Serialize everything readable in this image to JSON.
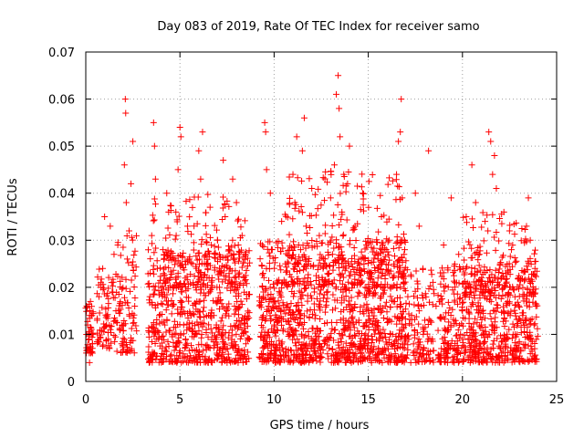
{
  "chart_data": {
    "type": "scatter",
    "title": "Day 083 of 2019, Rate Of TEC Index for receiver samo",
    "xlabel": "GPS time / hours",
    "ylabel": "ROTI / TECUs",
    "xlim": [
      0,
      25
    ],
    "ylim": [
      0,
      0.07
    ],
    "x_ticks": [
      0,
      5,
      10,
      15,
      20,
      25
    ],
    "x_tick_labels": [
      "0",
      "5",
      "10",
      "15",
      "20",
      "25"
    ],
    "y_ticks": [
      0,
      0.01,
      0.02,
      0.03,
      0.04,
      0.05,
      0.06,
      0.07
    ],
    "y_tick_labels": [
      "0",
      "0.01",
      "0.02",
      "0.03",
      "0.04",
      "0.05",
      "0.06",
      "0.07"
    ],
    "grid": true,
    "marker": "+",
    "marker_color": "#ff0000",
    "series": [
      {
        "name": "ROTI",
        "points": [
          [
            0.05,
            0.016
          ],
          [
            0.1,
            0.012
          ],
          [
            0.15,
            0.009
          ],
          [
            0.2,
            0.014
          ],
          [
            0.25,
            0.017
          ],
          [
            0.3,
            0.011
          ],
          [
            0.35,
            0.008
          ],
          [
            0.2,
            0.004
          ],
          [
            0.6,
            0.013
          ],
          [
            0.7,
            0.018
          ],
          [
            0.8,
            0.021
          ],
          [
            0.9,
            0.024
          ],
          [
            1.0,
            0.035
          ],
          [
            1.1,
            0.012
          ],
          [
            1.2,
            0.009
          ],
          [
            1.3,
            0.033
          ],
          [
            1.4,
            0.019
          ],
          [
            1.5,
            0.027
          ],
          [
            1.6,
            0.015
          ],
          [
            1.7,
            0.029
          ],
          [
            1.8,
            0.011
          ],
          [
            1.9,
            0.008
          ],
          [
            2.0,
            0.012
          ],
          [
            2.05,
            0.046
          ],
          [
            2.1,
            0.06
          ],
          [
            2.12,
            0.057
          ],
          [
            2.15,
            0.038
          ],
          [
            2.2,
            0.026
          ],
          [
            2.3,
            0.032
          ],
          [
            2.4,
            0.042
          ],
          [
            2.5,
            0.051
          ],
          [
            2.6,
            0.016
          ],
          [
            3.4,
            0.018
          ],
          [
            3.5,
            0.031
          ],
          [
            3.6,
            0.055
          ],
          [
            3.65,
            0.05
          ],
          [
            3.7,
            0.043
          ],
          [
            3.8,
            0.024
          ],
          [
            3.9,
            0.014
          ],
          [
            4.0,
            0.02
          ],
          [
            4.1,
            0.028
          ],
          [
            4.2,
            0.012
          ],
          [
            4.3,
            0.04
          ],
          [
            4.4,
            0.036
          ],
          [
            4.5,
            0.022
          ],
          [
            4.6,
            0.016
          ],
          [
            4.7,
            0.01
          ],
          [
            4.8,
            0.031
          ],
          [
            4.9,
            0.045
          ],
          [
            5.0,
            0.054
          ],
          [
            5.05,
            0.052
          ],
          [
            5.1,
            0.019
          ],
          [
            5.2,
            0.012
          ],
          [
            5.3,
            0.009
          ],
          [
            5.4,
            0.033
          ],
          [
            5.5,
            0.026
          ],
          [
            5.6,
            0.014
          ],
          [
            5.7,
            0.021
          ],
          [
            5.8,
            0.01
          ],
          [
            5.9,
            0.017
          ],
          [
            6.0,
            0.049
          ],
          [
            6.1,
            0.043
          ],
          [
            6.2,
            0.053
          ],
          [
            6.3,
            0.025
          ],
          [
            6.4,
            0.011
          ],
          [
            6.6,
            0.037
          ],
          [
            6.7,
            0.022
          ],
          [
            6.8,
            0.014
          ],
          [
            6.9,
            0.009
          ],
          [
            7.0,
            0.03
          ],
          [
            7.1,
            0.02
          ],
          [
            7.3,
            0.047
          ],
          [
            7.4,
            0.035
          ],
          [
            7.6,
            0.028
          ],
          [
            7.8,
            0.043
          ],
          [
            7.9,
            0.016
          ],
          [
            8.0,
            0.038
          ],
          [
            8.1,
            0.029
          ],
          [
            8.2,
            0.012
          ],
          [
            8.3,
            0.031
          ],
          [
            8.5,
            0.008
          ],
          [
            9.5,
            0.055
          ],
          [
            9.55,
            0.053
          ],
          [
            9.6,
            0.045
          ],
          [
            9.7,
            0.016
          ],
          [
            9.8,
            0.04
          ],
          [
            9.9,
            0.028
          ],
          [
            10.0,
            0.012
          ],
          [
            10.2,
            0.021
          ],
          [
            10.4,
            0.034
          ],
          [
            10.6,
            0.025
          ],
          [
            10.8,
            0.01
          ],
          [
            11.0,
            0.044
          ],
          [
            11.1,
            0.038
          ],
          [
            11.2,
            0.052
          ],
          [
            11.3,
            0.029
          ],
          [
            11.4,
            0.018
          ],
          [
            11.5,
            0.049
          ],
          [
            11.6,
            0.056
          ],
          [
            11.7,
            0.033
          ],
          [
            11.8,
            0.022
          ],
          [
            12.0,
            0.041
          ],
          [
            12.2,
            0.014
          ],
          [
            12.4,
            0.031
          ],
          [
            12.6,
            0.024
          ],
          [
            12.8,
            0.009
          ],
          [
            13.0,
            0.039
          ],
          [
            13.1,
            0.027
          ],
          [
            13.2,
            0.046
          ],
          [
            13.3,
            0.061
          ],
          [
            13.4,
            0.065
          ],
          [
            13.45,
            0.058
          ],
          [
            13.5,
            0.052
          ],
          [
            13.6,
            0.036
          ],
          [
            13.7,
            0.044
          ],
          [
            13.8,
            0.02
          ],
          [
            13.9,
            0.042
          ],
          [
            14.0,
            0.05
          ],
          [
            14.1,
            0.025
          ],
          [
            14.3,
            0.033
          ],
          [
            14.5,
            0.013
          ],
          [
            14.7,
            0.04
          ],
          [
            14.9,
            0.029
          ],
          [
            15.1,
            0.019
          ],
          [
            15.3,
            0.011
          ],
          [
            15.5,
            0.024
          ],
          [
            15.7,
            0.035
          ],
          [
            15.9,
            0.016
          ],
          [
            16.1,
            0.03
          ],
          [
            16.3,
            0.022
          ],
          [
            16.5,
            0.044
          ],
          [
            16.6,
            0.051
          ],
          [
            16.7,
            0.053
          ],
          [
            16.75,
            0.06
          ],
          [
            16.8,
            0.039
          ],
          [
            16.9,
            0.027
          ],
          [
            17.1,
            0.018
          ],
          [
            17.3,
            0.012
          ],
          [
            17.5,
            0.04
          ],
          [
            17.7,
            0.033
          ],
          [
            17.9,
            0.024
          ],
          [
            18.0,
            0.013
          ],
          [
            18.2,
            0.049
          ],
          [
            18.4,
            0.009
          ],
          [
            18.6,
            0.016
          ],
          [
            19.0,
            0.029
          ],
          [
            19.2,
            0.011
          ],
          [
            19.4,
            0.039
          ],
          [
            19.6,
            0.021
          ],
          [
            19.8,
            0.027
          ],
          [
            20.0,
            0.015
          ],
          [
            20.2,
            0.035
          ],
          [
            20.4,
            0.019
          ],
          [
            20.5,
            0.046
          ],
          [
            20.7,
            0.038
          ],
          [
            20.9,
            0.027
          ],
          [
            21.0,
            0.012
          ],
          [
            21.2,
            0.034
          ],
          [
            21.4,
            0.053
          ],
          [
            21.5,
            0.051
          ],
          [
            21.6,
            0.044
          ],
          [
            21.7,
            0.048
          ],
          [
            21.8,
            0.041
          ],
          [
            22.0,
            0.025
          ],
          [
            22.2,
            0.036
          ],
          [
            22.4,
            0.017
          ],
          [
            22.6,
            0.028
          ],
          [
            22.8,
            0.01
          ],
          [
            23.0,
            0.022
          ],
          [
            23.2,
            0.014
          ],
          [
            23.4,
            0.033
          ],
          [
            23.5,
            0.039
          ],
          [
            23.6,
            0.03
          ],
          [
            23.7,
            0.019
          ],
          [
            23.8,
            0.012
          ],
          [
            23.85,
            0.024
          ],
          [
            23.9,
            0.016
          ]
        ],
        "dense_clusters": [
          {
            "x": [
              0.0,
              0.4
            ],
            "y": [
              0.006,
              0.017
            ],
            "n": 40
          },
          {
            "x": [
              0.6,
              1.6
            ],
            "y": [
              0.007,
              0.024
            ],
            "n": 70
          },
          {
            "x": [
              1.6,
              2.7
            ],
            "y": [
              0.006,
              0.032
            ],
            "n": 90
          },
          {
            "x": [
              3.3,
              8.7
            ],
            "y": [
              0.004,
              0.028
            ],
            "n": 650
          },
          {
            "x": [
              3.5,
              8.5
            ],
            "y": [
              0.02,
              0.04
            ],
            "n": 150
          },
          {
            "x": [
              9.2,
              17.0
            ],
            "y": [
              0.004,
              0.03
            ],
            "n": 1100
          },
          {
            "x": [
              10.5,
              17.0
            ],
            "y": [
              0.02,
              0.045
            ],
            "n": 220
          },
          {
            "x": [
              17.0,
              18.5
            ],
            "y": [
              0.004,
              0.024
            ],
            "n": 110
          },
          {
            "x": [
              18.7,
              24.0
            ],
            "y": [
              0.004,
              0.025
            ],
            "n": 600
          },
          {
            "x": [
              20.0,
              23.9
            ],
            "y": [
              0.018,
              0.036
            ],
            "n": 140
          }
        ]
      }
    ]
  }
}
